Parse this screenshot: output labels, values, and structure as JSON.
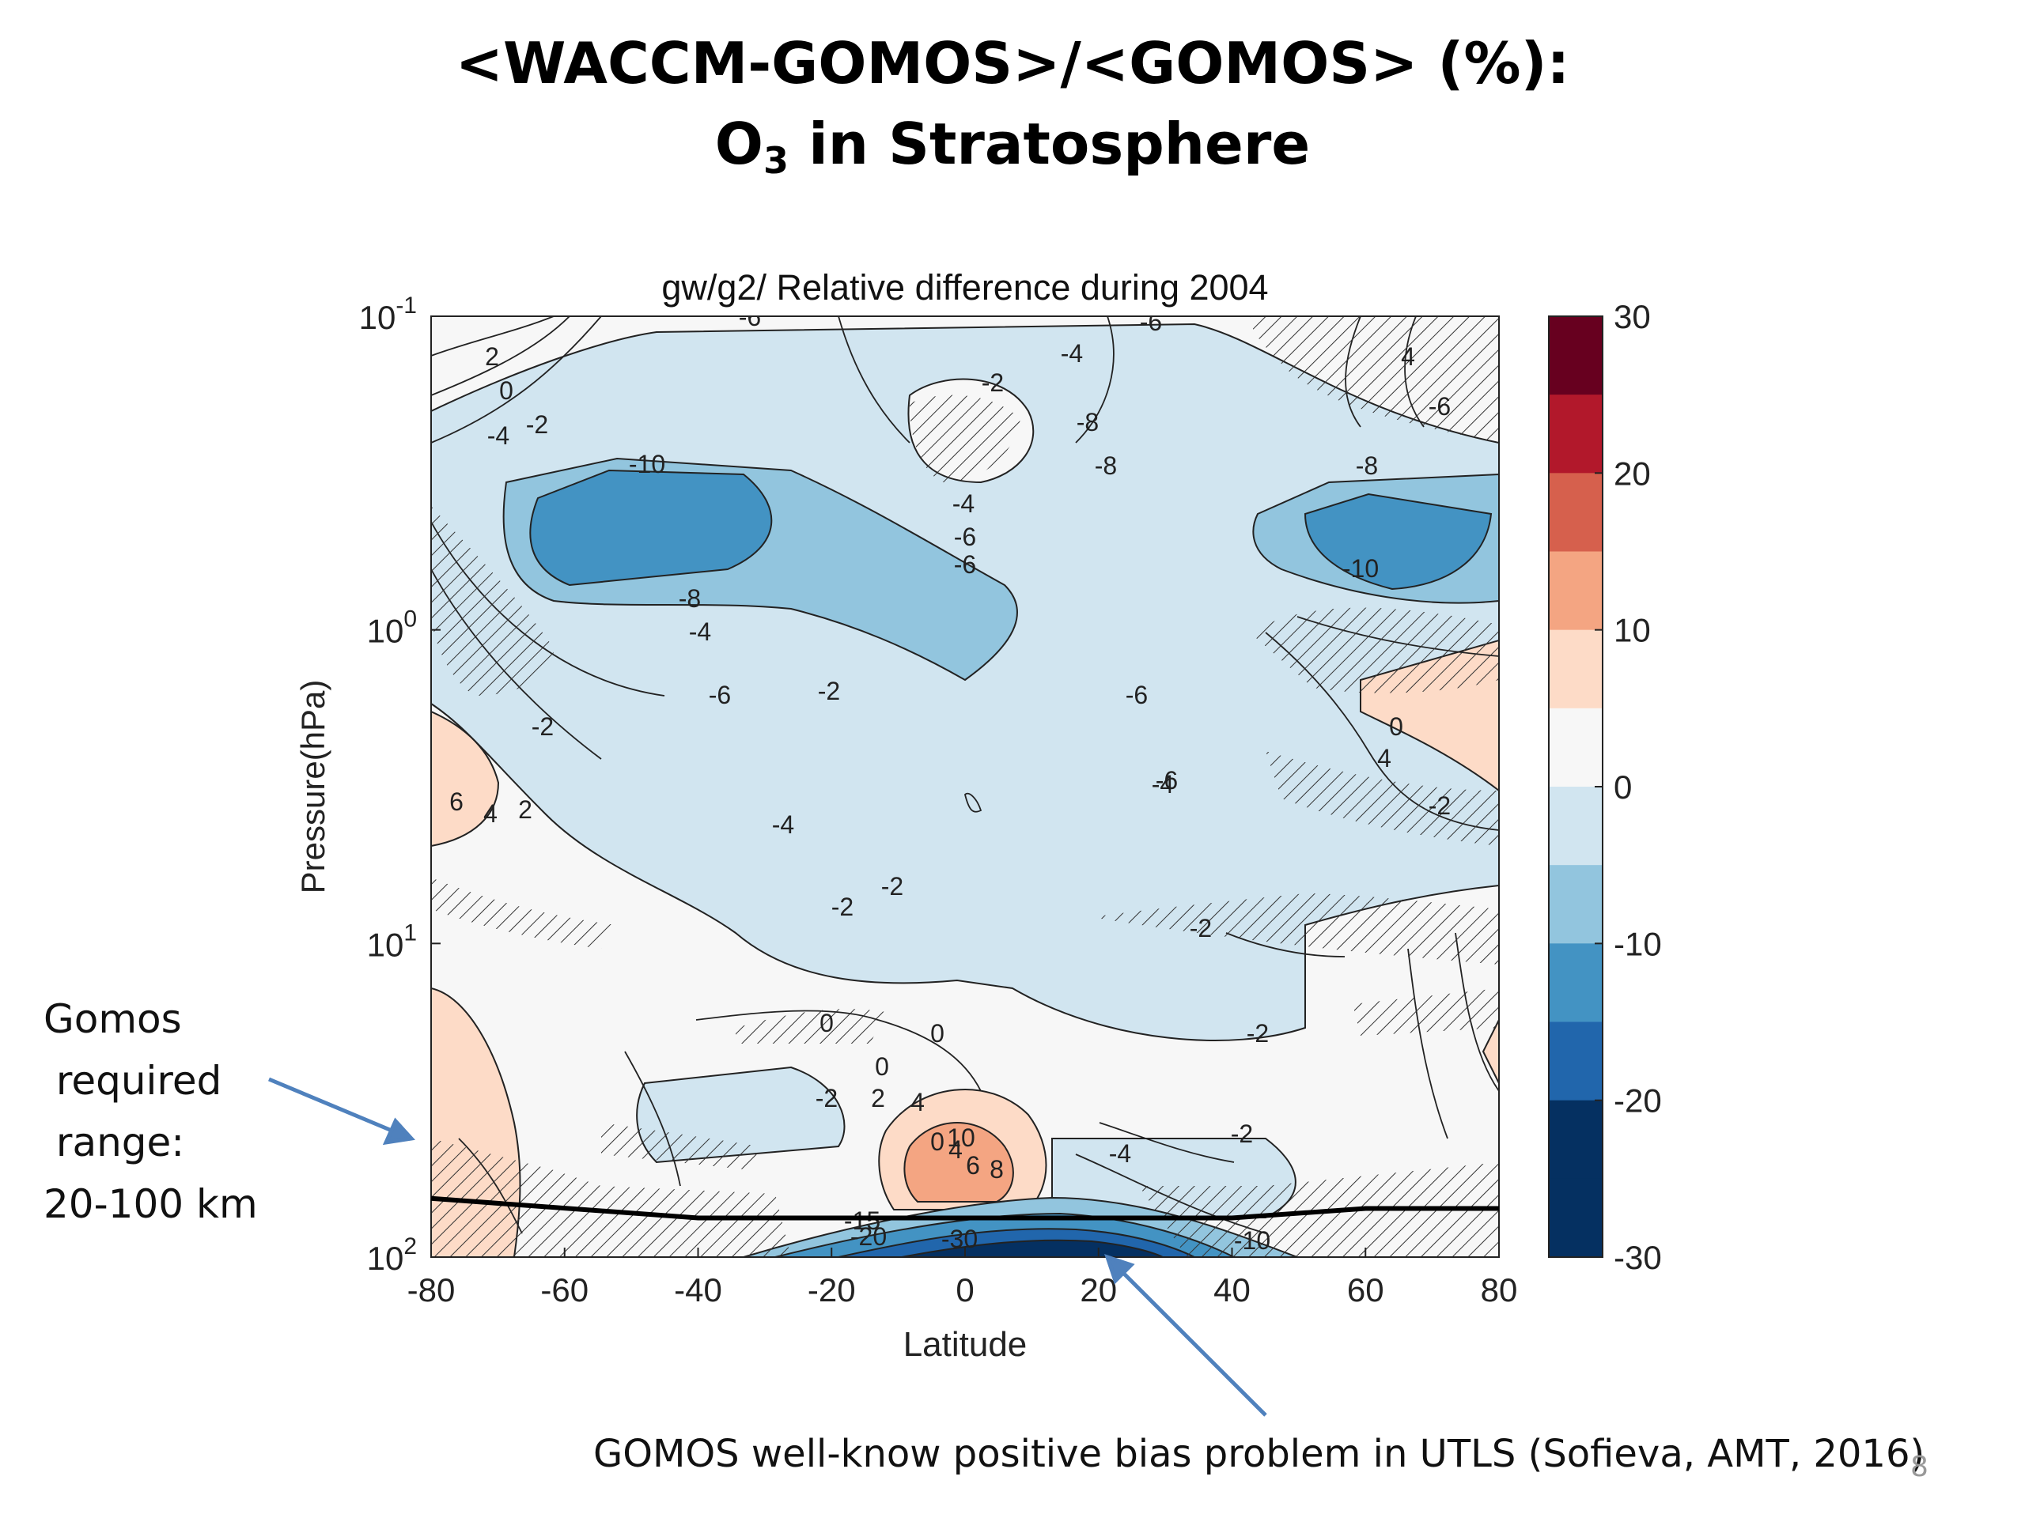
{
  "slide": {
    "title_line1": "<WACCM-GOMOS>/<GOMOS> (%):",
    "title_line2_main": "O",
    "title_line2_sub": "3",
    "title_line2_rest": " in Stratosphere",
    "page_number": "8"
  },
  "annotations": {
    "left_lines": [
      "Gomos",
      " required",
      " range:",
      "20-100 km"
    ],
    "bottom": "GOMOS well-know positive bias problem in UTLS (Sofieva, AMT, 2016)"
  },
  "chart_data": {
    "type": "heatmap",
    "title": "gw/g2/ Relative difference during 2004",
    "xlabel": "Latitude",
    "ylabel": "Pressure(hPa)",
    "xlim": [
      -80,
      80
    ],
    "ylim": [
      0.1,
      100
    ],
    "y_scale": "log",
    "y_reversed": true,
    "x_ticks": [
      "-80",
      "-60",
      "-40",
      "-20",
      "0",
      "20",
      "40",
      "60",
      "80"
    ],
    "y_ticks": [
      {
        "base": "10",
        "exp": "-1"
      },
      {
        "base": "10",
        "exp": "0"
      },
      {
        "base": "10",
        "exp": "1"
      },
      {
        "base": "10",
        "exp": "2"
      }
    ],
    "colorbar": {
      "ticks": [
        "30",
        "20",
        "10",
        "0",
        "-10",
        "-20",
        "-30"
      ],
      "levels": [
        30,
        25,
        20,
        15,
        10,
        5,
        0,
        -5,
        -10,
        -15,
        -20,
        -25,
        -30
      ],
      "colors": [
        "#67001f",
        "#b2182b",
        "#d6604d",
        "#f4a582",
        "#fddbc7",
        "#f7f7f7",
        "#d1e5f0",
        "#92c5de",
        "#4393c3",
        "#2166ac",
        "#053061",
        "#053061"
      ]
    },
    "contour_labels": [
      "-6",
      "-6",
      "-4",
      "-2",
      "2",
      "4",
      "0",
      "-2",
      "-4",
      "-6",
      "-10",
      "-8",
      "-6",
      "-4",
      "-8",
      "-8",
      "-6",
      "-4",
      "-2",
      "-6",
      "-6",
      "-6",
      "-4",
      "-2",
      "-4",
      "-2",
      "-2",
      "-2",
      "0",
      "0",
      "-2",
      "-10",
      "-8",
      "6",
      "4",
      "2",
      "0",
      "4",
      "-2",
      "-2",
      "-4",
      "0",
      "8",
      "10",
      "6",
      "4",
      "-30",
      "-20",
      "-15",
      "-10",
      "2",
      "4",
      "0",
      "-2"
    ],
    "required_range_line": {
      "name": "Gomos required range",
      "latitude": [
        -80,
        -40,
        40,
        60,
        80
      ],
      "pressure_hPa": [
        65,
        75,
        75,
        70,
        70
      ]
    }
  }
}
